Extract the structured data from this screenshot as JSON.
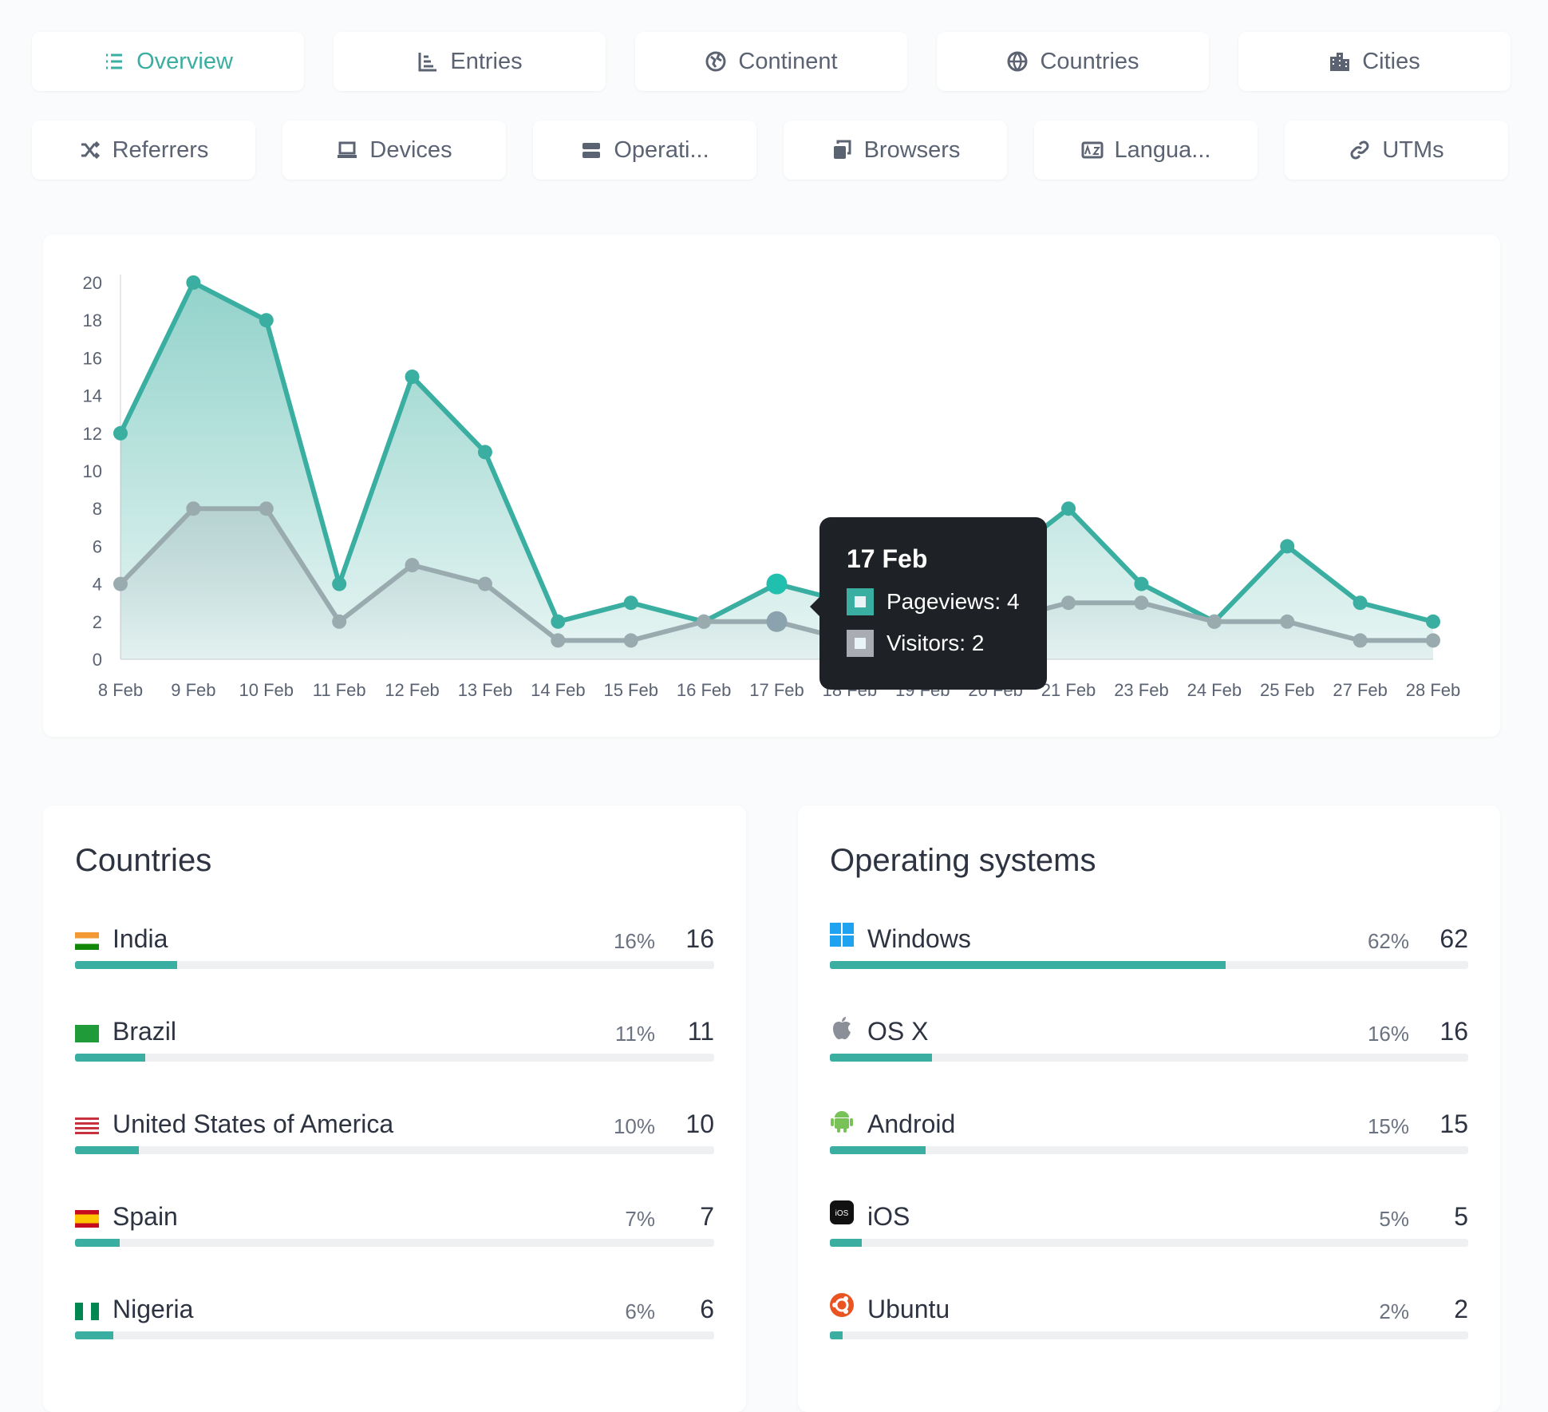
{
  "tabs_row1": [
    {
      "label": "Overview",
      "icon": "list-icon",
      "active": true
    },
    {
      "label": "Entries",
      "icon": "bar-chart-icon"
    },
    {
      "label": "Continent",
      "icon": "earth-icon"
    },
    {
      "label": "Countries",
      "icon": "globe-icon"
    },
    {
      "label": "Cities",
      "icon": "city-icon"
    }
  ],
  "tabs_row2": [
    {
      "label": "Referrers",
      "icon": "shuffle-icon"
    },
    {
      "label": "Devices",
      "icon": "laptop-icon"
    },
    {
      "label": "Operati...",
      "icon": "server-icon"
    },
    {
      "label": "Browsers",
      "icon": "browser-windows-icon"
    },
    {
      "label": "Langua...",
      "icon": "language-icon"
    },
    {
      "label": "UTMs",
      "icon": "link-icon"
    }
  ],
  "colors": {
    "accent": "#3aaea0",
    "visitors": "#9aabb0",
    "tooltip_bg": "#1e2126"
  },
  "chart_data": {
    "type": "area",
    "categories": [
      "8 Feb",
      "9 Feb",
      "10 Feb",
      "11 Feb",
      "12 Feb",
      "13 Feb",
      "14 Feb",
      "15 Feb",
      "16 Feb",
      "17 Feb",
      "18 Feb",
      "19 Feb",
      "20 Feb",
      "21 Feb",
      "23 Feb",
      "24 Feb",
      "25 Feb",
      "27 Feb",
      "28 Feb"
    ],
    "series": [
      {
        "name": "Pageviews",
        "values": [
          12,
          20,
          18,
          4,
          15,
          11,
          2,
          3,
          2,
          4,
          3,
          2,
          5,
          8,
          4,
          2,
          6,
          3,
          2
        ],
        "color": "#3aaea0"
      },
      {
        "name": "Visitors",
        "values": [
          4,
          8,
          8,
          2,
          5,
          4,
          1,
          1,
          2,
          2,
          1,
          1,
          2,
          3,
          3,
          2,
          2,
          1,
          1
        ],
        "color": "#9aabb0"
      }
    ],
    "yticks": [
      0,
      2,
      4,
      6,
      8,
      10,
      12,
      14,
      16,
      18,
      20
    ],
    "ylim": [
      0,
      20
    ],
    "grid": false,
    "tooltip": {
      "title": "17 Feb",
      "lines": [
        "Pageviews: 4",
        "Visitors: 2"
      ]
    }
  },
  "countries": {
    "title": "Countries",
    "items": [
      {
        "name": "India",
        "pct": "16%",
        "count": "16",
        "fraction": 0.16,
        "flag": "india"
      },
      {
        "name": "Brazil",
        "pct": "11%",
        "count": "11",
        "fraction": 0.11,
        "flag": "brazil"
      },
      {
        "name": "United States of America",
        "pct": "10%",
        "count": "10",
        "fraction": 0.1,
        "flag": "usa"
      },
      {
        "name": "Spain",
        "pct": "7%",
        "count": "7",
        "fraction": 0.07,
        "flag": "spain"
      },
      {
        "name": "Nigeria",
        "pct": "6%",
        "count": "6",
        "fraction": 0.06,
        "flag": "nigeria"
      }
    ]
  },
  "os": {
    "title": "Operating systems",
    "items": [
      {
        "name": "Windows",
        "pct": "62%",
        "count": "62",
        "fraction": 0.62,
        "icon": "windows-icon"
      },
      {
        "name": "OS X",
        "pct": "16%",
        "count": "16",
        "fraction": 0.16,
        "icon": "apple-icon"
      },
      {
        "name": "Android",
        "pct": "15%",
        "count": "15",
        "fraction": 0.15,
        "icon": "android-icon"
      },
      {
        "name": "iOS",
        "pct": "5%",
        "count": "5",
        "fraction": 0.05,
        "icon": "ios-icon"
      },
      {
        "name": "Ubuntu",
        "pct": "2%",
        "count": "2",
        "fraction": 0.02,
        "icon": "ubuntu-icon"
      }
    ]
  }
}
